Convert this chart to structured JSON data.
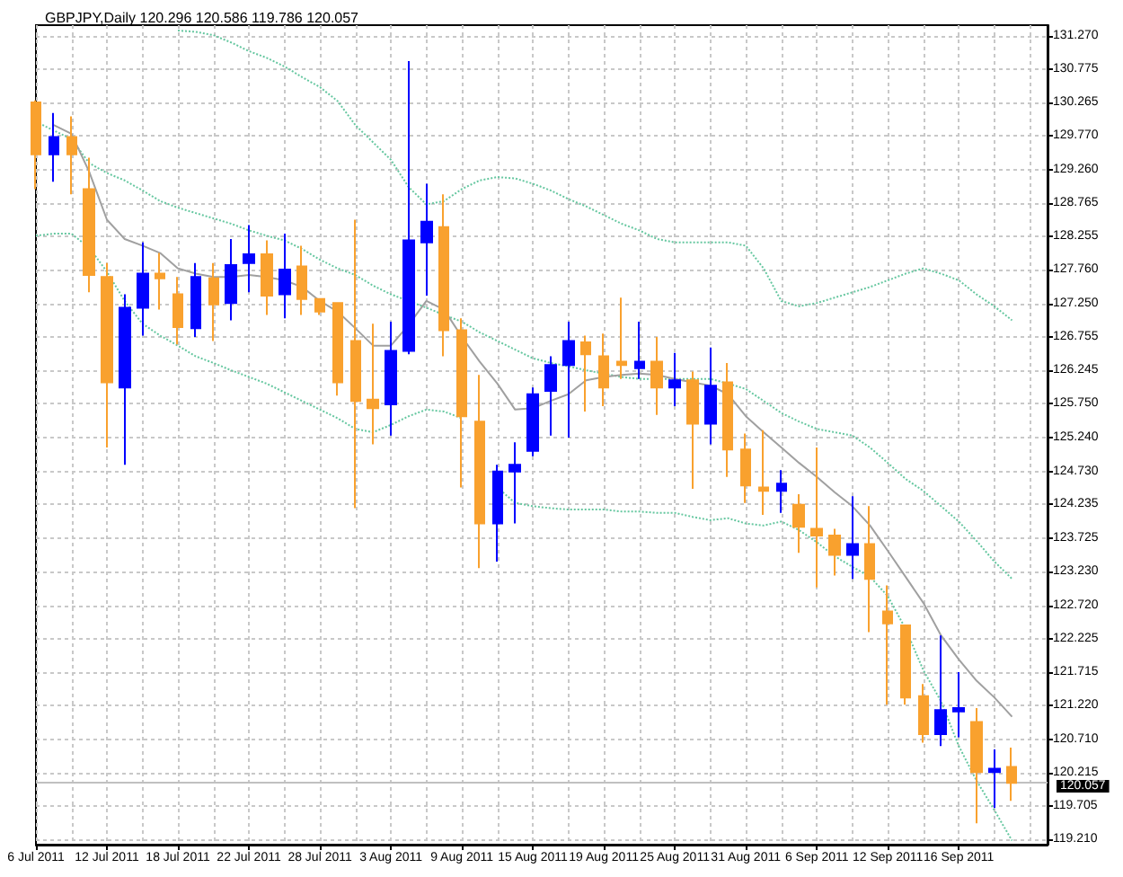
{
  "chart_data": {
    "type": "candlestick",
    "title": "GBPJPY,Daily 120.296 120.586 119.786 120.057",
    "categories": [
      "6 Jul 2011",
      null,
      null,
      null,
      "12 Jul 2011",
      null,
      null,
      null,
      "18 Jul 2011",
      null,
      null,
      null,
      "22 Jul 2011",
      null,
      null,
      null,
      "28 Jul 2011",
      null,
      null,
      null,
      "3 Aug 2011",
      null,
      null,
      null,
      "9 Aug 2011",
      null,
      null,
      null,
      "15 Aug 2011",
      null,
      null,
      null,
      "19 Aug 2011",
      null,
      null,
      null,
      "25 Aug 2011",
      null,
      null,
      null,
      "31 Aug 2011",
      null,
      null,
      null,
      "6 Sep 2011",
      null,
      null,
      null,
      "12 Sep 2011",
      null,
      null,
      null,
      "16 Sep 2011",
      null,
      null,
      null
    ],
    "series": [
      {
        "type": "line",
        "color": "#66c7a0",
        "line_style": "dotted",
        "values": [
          null,
          null,
          null,
          null,
          null,
          null,
          null,
          null,
          131.35,
          131.33,
          131.28,
          131.17,
          131.04,
          130.94,
          130.81,
          130.65,
          130.5,
          130.29,
          129.93,
          129.67,
          129.41,
          129.0,
          128.74,
          128.79,
          128.97,
          129.1,
          129.15,
          129.13,
          129.05,
          128.95,
          128.82,
          128.71,
          128.58,
          128.45,
          128.35,
          128.22,
          128.17,
          128.17,
          128.17,
          128.17,
          128.12,
          127.78,
          127.29,
          127.21,
          127.26,
          127.34,
          127.42,
          127.5,
          127.6,
          127.7,
          127.78,
          127.7,
          127.6,
          127.39,
          127.21,
          127.0
        ]
      },
      {
        "type": "line",
        "color": "#66c7a0",
        "line_style": "dotted",
        "values": [
          129.98,
          129.85,
          129.72,
          129.36,
          129.21,
          129.1,
          128.95,
          128.79,
          128.69,
          128.61,
          128.53,
          128.45,
          128.35,
          128.27,
          128.2,
          128.07,
          127.91,
          127.78,
          127.68,
          127.52,
          127.39,
          127.29,
          127.19,
          127.08,
          126.98,
          126.82,
          126.69,
          126.56,
          126.43,
          126.36,
          126.31,
          126.25,
          126.2,
          126.15,
          126.12,
          126.12,
          126.12,
          126.12,
          126.12,
          126.05,
          125.97,
          125.79,
          125.61,
          125.48,
          125.37,
          125.32,
          125.27,
          125.09,
          124.86,
          124.62,
          124.44,
          124.21,
          123.98,
          123.69,
          123.38,
          123.12
        ]
      },
      {
        "type": "line",
        "color": "#66c7a0",
        "line_style": "dotted",
        "values": [
          128.27,
          128.3,
          128.3,
          128.09,
          127.73,
          127.29,
          126.95,
          126.77,
          126.62,
          126.46,
          126.36,
          126.25,
          126.15,
          126.05,
          125.92,
          125.79,
          125.66,
          125.53,
          125.37,
          125.32,
          125.43,
          125.56,
          125.66,
          125.63,
          125.53,
          null,
          124.49,
          124.26,
          124.21,
          124.18,
          124.16,
          124.16,
          124.16,
          124.13,
          124.13,
          124.11,
          124.11,
          124.05,
          124.0,
          124.03,
          123.95,
          123.92,
          123.98,
          123.85,
          123.67,
          123.46,
          123.3,
          123.15,
          122.86,
          122.37,
          121.75,
          121.28,
          120.61,
          120.09,
          119.65,
          119.19
        ]
      },
      {
        "type": "line",
        "color": "#a0a0a0",
        "line_style": "solid",
        "values": [
          null,
          129.93,
          129.8,
          129.23,
          128.51,
          128.22,
          128.12,
          128.01,
          127.78,
          127.7,
          127.65,
          127.65,
          127.68,
          127.65,
          127.6,
          127.5,
          127.29,
          127.13,
          126.88,
          126.62,
          126.62,
          126.93,
          127.29,
          127.16,
          126.75,
          126.38,
          126.05,
          125.66,
          125.68,
          125.79,
          125.89,
          126.1,
          126.15,
          126.18,
          126.2,
          126.18,
          126.12,
          126.07,
          126.02,
          125.89,
          125.56,
          125.32,
          125.09,
          124.86,
          124.65,
          124.42,
          124.21,
          123.92,
          123.54,
          123.15,
          122.76,
          122.27,
          121.91,
          121.59,
          121.34,
          121.05
        ]
      },
      {
        "type": "candlestick",
        "ohlc": [
          [
            130.27,
            130.3,
            128.97,
            129.49
          ],
          [
            129.49,
            130.11,
            129.08,
            129.75
          ],
          [
            129.75,
            130.06,
            128.89,
            129.49
          ],
          [
            128.97,
            129.44,
            127.42,
            127.68
          ],
          [
            127.65,
            127.86,
            125.09,
            126.07
          ],
          [
            125.99,
            127.39,
            124.83,
            127.19
          ],
          [
            127.19,
            128.17,
            126.77,
            127.7
          ],
          [
            127.7,
            128.01,
            127.16,
            127.63
          ],
          [
            127.39,
            127.65,
            126.64,
            126.9
          ],
          [
            126.88,
            127.86,
            126.75,
            127.65
          ],
          [
            127.63,
            127.86,
            126.69,
            127.24
          ],
          [
            127.26,
            128.22,
            127.0,
            127.83
          ],
          [
            127.86,
            128.43,
            127.42,
            127.99
          ],
          [
            127.99,
            128.2,
            127.08,
            127.37
          ],
          [
            127.39,
            128.3,
            127.03,
            127.76
          ],
          [
            127.81,
            128.12,
            127.08,
            127.32
          ],
          [
            127.32,
            127.32,
            127.08,
            127.13
          ],
          [
            127.26,
            127.26,
            125.87,
            126.07
          ],
          [
            126.69,
            128.51,
            124.18,
            125.79
          ],
          [
            125.81,
            126.95,
            125.14,
            125.68
          ],
          [
            125.74,
            126.98,
            125.27,
            126.54
          ],
          [
            126.54,
            130.89,
            126.49,
            128.2
          ],
          [
            128.17,
            129.05,
            127.37,
            128.48
          ],
          [
            128.4,
            128.89,
            126.46,
            126.85
          ],
          [
            126.85,
            127.03,
            124.49,
            125.56
          ],
          [
            125.48,
            126.18,
            123.28,
            123.95
          ],
          [
            123.95,
            124.83,
            123.38,
            124.73
          ],
          [
            124.73,
            125.17,
            123.95,
            124.83
          ],
          [
            125.04,
            125.99,
            124.96,
            125.89
          ],
          [
            125.94,
            126.46,
            125.27,
            126.33
          ],
          [
            126.33,
            126.98,
            125.24,
            126.69
          ],
          [
            126.67,
            126.77,
            125.63,
            126.49
          ],
          [
            126.46,
            126.8,
            125.71,
            125.99
          ],
          [
            126.38,
            127.34,
            126.12,
            126.33
          ],
          [
            126.28,
            126.98,
            126.12,
            126.38
          ],
          [
            126.38,
            126.75,
            125.58,
            125.99
          ],
          [
            125.99,
            126.51,
            125.71,
            126.1
          ],
          [
            126.1,
            126.23,
            124.47,
            125.45
          ],
          [
            125.45,
            126.59,
            125.14,
            126.02
          ],
          [
            126.07,
            126.36,
            124.65,
            125.06
          ],
          [
            125.06,
            125.3,
            124.26,
            124.52
          ],
          [
            124.49,
            125.35,
            124.08,
            124.44
          ],
          [
            124.44,
            124.75,
            124.11,
            124.55
          ],
          [
            124.23,
            124.39,
            123.51,
            123.9
          ],
          [
            123.87,
            125.09,
            122.99,
            123.77
          ],
          [
            123.77,
            123.87,
            123.17,
            123.48
          ],
          [
            123.48,
            124.36,
            123.12,
            123.64
          ],
          [
            123.64,
            124.21,
            122.32,
            123.12
          ],
          [
            122.63,
            123.02,
            121.23,
            122.45
          ],
          [
            122.42,
            122.42,
            121.23,
            121.34
          ],
          [
            121.36,
            121.54,
            120.66,
            120.79
          ],
          [
            120.79,
            122.27,
            120.61,
            121.15
          ],
          [
            121.13,
            121.72,
            120.74,
            121.18
          ],
          [
            120.97,
            121.18,
            119.45,
            120.22
          ],
          [
            120.22,
            120.56,
            119.68,
            120.27
          ],
          [
            120.296,
            120.586,
            119.786,
            120.057
          ]
        ],
        "colors": [
          "#f9a12e",
          "#0000ff",
          "#f9a12e",
          "#f9a12e",
          "#f9a12e",
          "#0000ff",
          "#0000ff",
          "#f9a12e",
          "#f9a12e",
          "#0000ff",
          "#f9a12e",
          "#0000ff",
          "#0000ff",
          "#f9a12e",
          "#0000ff",
          "#f9a12e",
          "#f9a12e",
          "#f9a12e",
          "#f9a12e",
          "#f9a12e",
          "#0000ff",
          "#0000ff",
          "#0000ff",
          "#f9a12e",
          "#f9a12e",
          "#f9a12e",
          "#0000ff",
          "#0000ff",
          "#0000ff",
          "#0000ff",
          "#0000ff",
          "#f9a12e",
          "#f9a12e",
          "#f9a12e",
          "#0000ff",
          "#f9a12e",
          "#0000ff",
          "#f9a12e",
          "#0000ff",
          "#f9a12e",
          "#f9a12e",
          "#f9a12e",
          "#0000ff",
          "#f9a12e",
          "#f9a12e",
          "#f9a12e",
          "#0000ff",
          "#f9a12e",
          "#f9a12e",
          "#f9a12e",
          "#f9a12e",
          "#0000ff",
          "#0000ff",
          "#f9a12e",
          "#0000ff",
          "#f9a12e"
        ]
      }
    ],
    "ylim": [
      119.13,
      131.43
    ],
    "yticks": [
      {
        "value": 131.27,
        "label": "131.270"
      },
      {
        "value": 130.775,
        "label": "130.775"
      },
      {
        "value": 130.265,
        "label": "130.265"
      },
      {
        "value": 129.77,
        "label": "129.770"
      },
      {
        "value": 129.26,
        "label": "129.260"
      },
      {
        "value": 128.765,
        "label": "128.765"
      },
      {
        "value": 128.255,
        "label": "128.255"
      },
      {
        "value": 127.76,
        "label": "127.760"
      },
      {
        "value": 127.25,
        "label": "127.250"
      },
      {
        "value": 126.755,
        "label": "126.755"
      },
      {
        "value": 126.245,
        "label": "126.245"
      },
      {
        "value": 125.75,
        "label": "125.750"
      },
      {
        "value": 125.24,
        "label": "125.240"
      },
      {
        "value": 124.73,
        "label": "124.730"
      },
      {
        "value": 124.235,
        "label": "124.235"
      },
      {
        "value": 123.725,
        "label": "123.725"
      },
      {
        "value": 123.23,
        "label": "123.230"
      },
      {
        "value": 122.72,
        "label": "122.720"
      },
      {
        "value": 122.225,
        "label": "122.225"
      },
      {
        "value": 121.715,
        "label": "121.715"
      },
      {
        "value": 121.22,
        "label": "121.220"
      },
      {
        "value": 120.71,
        "label": "120.710"
      },
      {
        "value": 120.215,
        "label": "120.215"
      },
      {
        "value": 119.705,
        "label": "119.705"
      },
      {
        "value": 119.21,
        "label": "119.210"
      }
    ],
    "ref_lines": [
      {
        "axis": "y",
        "value": 120.057,
        "label": "120.057",
        "color": "#c0c0c0"
      }
    ],
    "grid": true,
    "marker": "none"
  }
}
